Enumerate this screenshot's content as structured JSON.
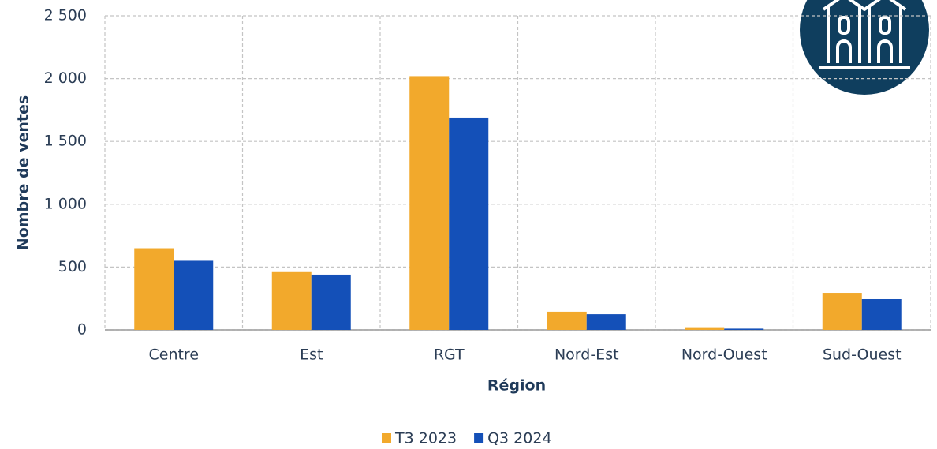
{
  "chart_data": {
    "type": "bar",
    "x_label": "Région",
    "y_label": "Nombre de ventes",
    "categories": [
      "Centre",
      "Est",
      "RGT",
      "Nord-Est",
      "Nord-Ouest",
      "Sud-Ouest"
    ],
    "series": [
      {
        "name": "T3 2023",
        "color": "#f2a92c",
        "values": [
          650,
          460,
          2020,
          145,
          15,
          295
        ]
      },
      {
        "name": "Q3 2024",
        "color": "#1450b8",
        "values": [
          550,
          440,
          1690,
          125,
          10,
          245
        ]
      }
    ],
    "ylim": [
      0,
      2500
    ],
    "yticks": [
      0,
      500,
      {
        "value": 1000,
        "label": "1 000"
      },
      {
        "value": 1500,
        "label": "1 500"
      },
      {
        "value": 2000,
        "label": "2 000"
      },
      {
        "value": 2500,
        "label": "2 500"
      }
    ],
    "grid": true,
    "legend": "bottom"
  }
}
